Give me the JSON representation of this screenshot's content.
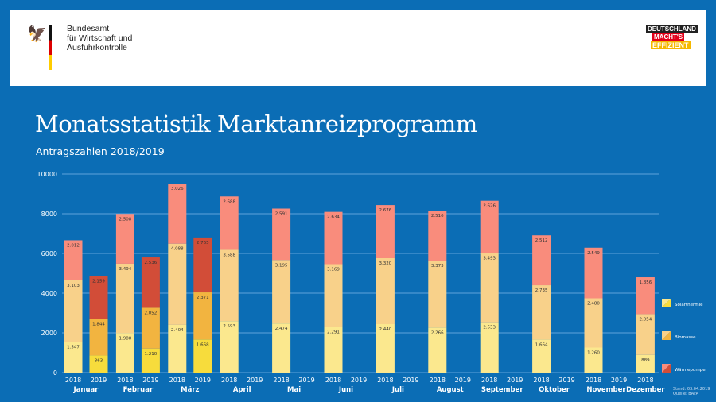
{
  "header": {
    "org_lines": [
      "Bundesamt",
      "für Wirtschaft und",
      "Ausfuhrkontrolle"
    ],
    "campaign_logo": [
      "DEUTSCHLAND",
      "MACHT'S",
      "EFFIZIENT"
    ]
  },
  "title": "Monatsstatistik Marktanreizprogramm",
  "subtitle": "Antragszahlen 2018/2019",
  "footer": {
    "stand": "Stand: 03.04.2019",
    "quelle": "Quelle: BAFA"
  },
  "chart_data": {
    "type": "bar",
    "stacked": true,
    "title": "Monatsstatistik Marktanreizprogramm",
    "ylim": [
      0,
      10000
    ],
    "yticks": [
      0,
      2000,
      4000,
      6000,
      8000,
      10000
    ],
    "legend_position": "right",
    "series_names": [
      "Solarthermie",
      "Biomasse",
      "Wärmepumpe"
    ],
    "colors": {
      "2018": [
        "#fbe88e",
        "#f8d18a",
        "#f98c7c"
      ],
      "2019": [
        "#f7dc3c",
        "#f2b440",
        "#d24d38"
      ]
    },
    "months": [
      {
        "name": "Januar",
        "2018": [
          1547,
          3103,
          2012
        ],
        "2019": [
          863,
          1844,
          2159
        ]
      },
      {
        "name": "Februar",
        "2018": [
          1988,
          3494,
          2508
        ],
        "2019": [
          1210,
          2052,
          2536
        ]
      },
      {
        "name": "März",
        "2018": [
          2404,
          4088,
          3026
        ],
        "2019": [
          1668,
          2371,
          2765
        ]
      },
      {
        "name": "April",
        "2018": [
          2593,
          3588,
          2688
        ],
        "2019": null
      },
      {
        "name": "Mai",
        "2018": [
          2474,
          3195,
          2591
        ],
        "2019": null
      },
      {
        "name": "Juni",
        "2018": [
          2291,
          3169,
          2634
        ],
        "2019": null
      },
      {
        "name": "Juli",
        "2018": [
          2440,
          3320,
          2676
        ],
        "2019": null
      },
      {
        "name": "August",
        "2018": [
          2266,
          3373,
          2516
        ],
        "2019": null
      },
      {
        "name": "September",
        "2018": [
          2533,
          3493,
          2626
        ],
        "2019": null
      },
      {
        "name": "Oktober",
        "2018": [
          1664,
          2735,
          2512
        ],
        "2019": null
      },
      {
        "name": "November",
        "2018": [
          1260,
          2480,
          2549
        ],
        "2019": null
      },
      {
        "name": "Dezember",
        "2018": [
          889,
          2054,
          1856
        ],
        "2019": null
      }
    ],
    "years": [
      "2018",
      "2019"
    ]
  }
}
